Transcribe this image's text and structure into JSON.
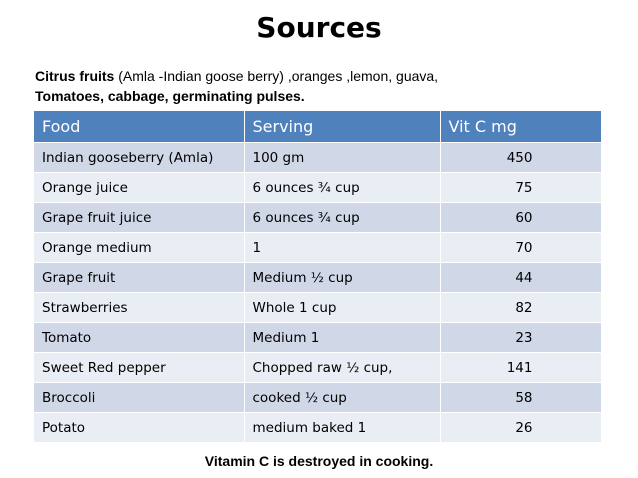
{
  "title": "Sources",
  "intro": {
    "line1_bold": "Citrus fruits",
    "line1_rest": " (Amla -Indian goose berry) ,oranges ,lemon, guava,",
    "line2_bold": "Tomatoes,  cabbage, germinating pulses."
  },
  "table": {
    "headers": [
      "Food",
      "Serving",
      "Vit C mg"
    ],
    "rows": [
      [
        "Indian gooseberry (Amla)",
        "100 gm",
        "450"
      ],
      [
        "Orange juice",
        "6 ounces ¾ cup",
        "75"
      ],
      [
        "Grape fruit juice",
        "6 ounces ¾ cup",
        "60"
      ],
      [
        "Orange medium",
        "1",
        "70"
      ],
      [
        "Grape fruit",
        "Medium ½ cup",
        "44"
      ],
      [
        "Strawberries",
        "Whole 1 cup",
        "82"
      ],
      [
        "Tomato",
        "Medium 1",
        "23"
      ],
      [
        "Sweet Red pepper",
        "Chopped  raw ½ cup,",
        "141"
      ],
      [
        "Broccoli",
        "cooked ½ cup",
        "58"
      ],
      [
        "Potato",
        "medium baked 1",
        "26"
      ]
    ]
  },
  "footer": "Vitamin C is destroyed in cooking.",
  "colors": {
    "header_bg": "#4f81bd",
    "row_odd": "#d0d8e8",
    "row_even": "#e9edf4"
  }
}
